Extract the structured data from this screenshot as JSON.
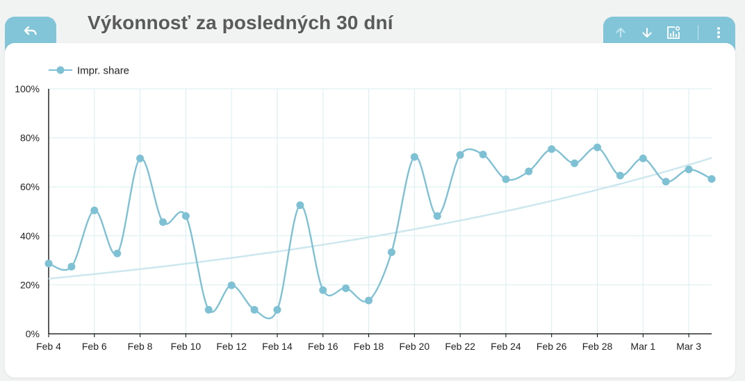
{
  "title": "Výkonnosť za posledných 30 dní",
  "icons": {
    "back": "undo-arrow-icon",
    "up": "arrow-up-icon",
    "down": "arrow-down-icon",
    "chart_settings": "chart-settings-icon",
    "more": "more-vertical-icon"
  },
  "colors": {
    "accent": "#82c5d8",
    "series": "#7fc1d4",
    "trend": "#cde7ee",
    "grid": "#d8eeee",
    "title": "#5a5a5a"
  },
  "chart_data": {
    "type": "line",
    "title": "",
    "xlabel": "",
    "ylabel": "",
    "ylim": [
      0,
      100
    ],
    "yticks": [
      "0%",
      "20%",
      "40%",
      "60%",
      "80%",
      "100%"
    ],
    "xticks": [
      "Feb 4",
      "Feb 6",
      "Feb 8",
      "Feb 10",
      "Feb 12",
      "Feb 14",
      "Feb 16",
      "Feb 18",
      "Feb 20",
      "Feb 22",
      "Feb 24",
      "Feb 26",
      "Feb 28",
      "Mar 1",
      "Mar 3"
    ],
    "legend_position": "top-left",
    "grid": true,
    "x": [
      "Feb 4",
      "Feb 5",
      "Feb 6",
      "Feb 7",
      "Feb 8",
      "Feb 9",
      "Feb 10",
      "Feb 11",
      "Feb 12",
      "Feb 13",
      "Feb 14",
      "Feb 15",
      "Feb 16",
      "Feb 17",
      "Feb 18",
      "Feb 19",
      "Feb 20",
      "Feb 21",
      "Feb 22",
      "Feb 23",
      "Feb 24",
      "Feb 25",
      "Feb 26",
      "Feb 27",
      "Feb 28",
      "Feb 29",
      "Mar 1",
      "Mar 2",
      "Mar 3",
      "Mar 4"
    ],
    "series": [
      {
        "name": "Impr. share",
        "values": [
          28.7,
          27.4,
          50.4,
          32.8,
          71.6,
          45.6,
          48.1,
          9.8,
          19.8,
          9.8,
          9.8,
          52.5,
          17.8,
          18.6,
          13.6,
          33.3,
          72.2,
          48.1,
          73.0,
          73.2,
          63.1,
          66.3,
          75.4,
          69.6,
          76.1,
          64.6,
          71.6,
          62.1,
          67.1,
          63.2
        ]
      }
    ],
    "trendline": {
      "type": "exponential",
      "start": 22.5,
      "end": 71.8
    }
  }
}
